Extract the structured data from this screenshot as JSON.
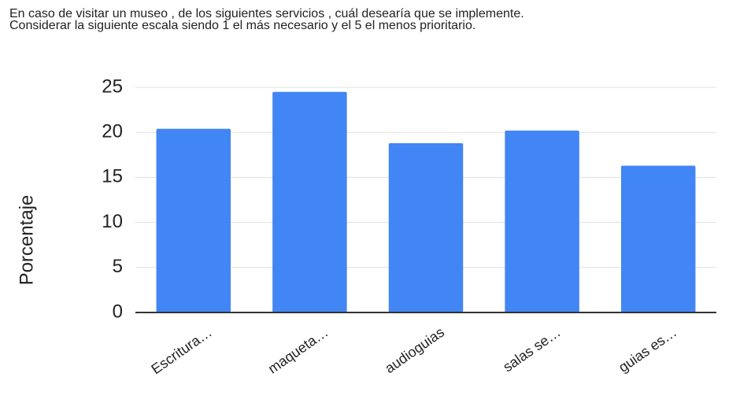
{
  "chart_data": {
    "type": "bar",
    "title": "En caso de visitar un museo , de los siguientes servicios , cuál desearía que se implemente. Considerar la siguiente escala siendo 1 el más necesario y el 5 el menos prioritario.",
    "y_label": "Porcentaje",
    "categories": [
      "Escritura…",
      "maqueta…",
      "audioguias",
      "salas se…",
      "guias es…"
    ],
    "values": [
      20.4,
      24.5,
      18.8,
      20.2,
      16.3
    ],
    "color": "#4285f4",
    "ylim": [
      0,
      25
    ],
    "yticks": [
      0,
      5,
      10,
      15,
      20,
      25
    ],
    "grid": true
  }
}
